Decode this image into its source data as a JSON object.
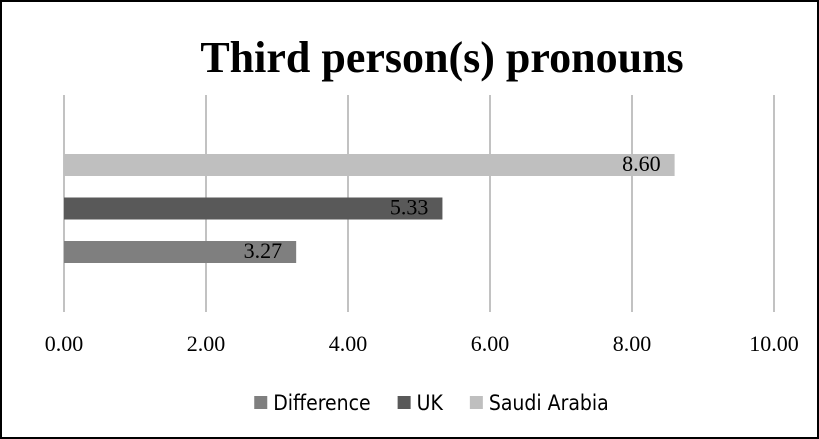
{
  "chart_data": {
    "type": "bar",
    "orientation": "horizontal",
    "title": "Third person(s) pronouns",
    "categories": [
      null
    ],
    "series": [
      {
        "name": "Difference",
        "color": "#7f7f7f",
        "values": [
          3.27
        ]
      },
      {
        "name": "UK",
        "color": "#595959",
        "values": [
          5.33
        ]
      },
      {
        "name": "Saudi Arabia",
        "color": "#bfbfbf",
        "values": [
          8.6
        ],
        "value_labels": [
          "8.60"
        ]
      }
    ],
    "xlim": [
      0,
      10
    ],
    "xticks": [
      {
        "value": 0,
        "label": "0.00"
      },
      {
        "value": 2,
        "label": "2.00"
      },
      {
        "value": 4,
        "label": "4.00"
      },
      {
        "value": 6,
        "label": "6.00"
      },
      {
        "value": 8,
        "label": "8.00"
      },
      {
        "value": 10,
        "label": "10.00"
      }
    ],
    "grid": true,
    "legend": "bottom"
  }
}
